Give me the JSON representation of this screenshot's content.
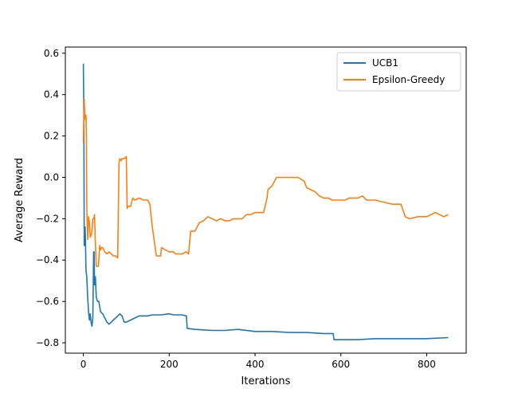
{
  "chart_data": {
    "type": "line",
    "xlabel": "Iterations",
    "ylabel": "Average Reward",
    "xlim": [
      -42,
      892
    ],
    "ylim": [
      -0.85,
      0.63
    ],
    "xticks": [
      0,
      200,
      400,
      600,
      800
    ],
    "xtick_labels": [
      "0",
      "200",
      "400",
      "600",
      "800"
    ],
    "yticks": [
      -0.8,
      -0.6,
      -0.4,
      -0.2,
      0.0,
      0.2,
      0.4,
      0.6
    ],
    "ytick_labels": [
      "−0.8",
      "−0.6",
      "−0.4",
      "−0.2",
      "0.0",
      "0.2",
      "0.4",
      "0.6"
    ],
    "grid": false,
    "legend_position": "top-right",
    "series": [
      {
        "name": "UCB1",
        "color": "#1f77b4",
        "x": [
          0,
          1,
          2,
          3,
          4,
          5,
          6,
          8,
          10,
          12,
          14,
          16,
          18,
          20,
          22,
          24,
          25,
          26,
          28,
          30,
          33,
          36,
          40,
          45,
          50,
          55,
          60,
          65,
          70,
          75,
          80,
          85,
          90,
          95,
          100,
          110,
          120,
          130,
          140,
          150,
          160,
          180,
          200,
          210,
          220,
          230,
          240,
          242,
          260,
          300,
          330,
          360,
          400,
          440,
          480,
          520,
          560,
          582,
          584,
          600,
          640,
          680,
          720,
          760,
          800,
          850
        ],
        "y": [
          0.55,
          0.3,
          -0.33,
          -0.25,
          -0.24,
          -0.32,
          -0.45,
          -0.48,
          -0.58,
          -0.65,
          -0.69,
          -0.66,
          -0.7,
          -0.72,
          -0.68,
          -0.36,
          -0.36,
          -0.52,
          -0.48,
          -0.58,
          -0.6,
          -0.6,
          -0.65,
          -0.66,
          -0.68,
          -0.7,
          -0.71,
          -0.7,
          -0.69,
          -0.68,
          -0.67,
          -0.66,
          -0.67,
          -0.7,
          -0.7,
          -0.69,
          -0.68,
          -0.67,
          -0.67,
          -0.67,
          -0.665,
          -0.665,
          -0.66,
          -0.665,
          -0.665,
          -0.665,
          -0.67,
          -0.73,
          -0.735,
          -0.74,
          -0.74,
          -0.735,
          -0.745,
          -0.745,
          -0.75,
          -0.75,
          -0.755,
          -0.755,
          -0.785,
          -0.785,
          -0.785,
          -0.78,
          -0.78,
          -0.78,
          -0.78,
          -0.775
        ]
      },
      {
        "name": "Epsilon-Greedy",
        "color": "#ff7f0e",
        "x": [
          0,
          2,
          3,
          4,
          6,
          7,
          8,
          10,
          12,
          14,
          16,
          18,
          20,
          22,
          24,
          26,
          28,
          30,
          35,
          38,
          40,
          42,
          45,
          50,
          55,
          60,
          65,
          70,
          75,
          80,
          83,
          85,
          88,
          90,
          95,
          100,
          102,
          104,
          110,
          115,
          120,
          130,
          140,
          150,
          155,
          160,
          170,
          180,
          182,
          200,
          210,
          215,
          230,
          240,
          245,
          250,
          260,
          270,
          280,
          290,
          300,
          310,
          320,
          330,
          340,
          350,
          360,
          370,
          380,
          390,
          400,
          410,
          420,
          428,
          430,
          440,
          445,
          450,
          460,
          480,
          500,
          515,
          520,
          530,
          540,
          550,
          560,
          570,
          580,
          590,
          600,
          610,
          620,
          640,
          650,
          660,
          680,
          700,
          720,
          730,
          740,
          750,
          760,
          780,
          800,
          820,
          840,
          850
        ],
        "y": [
          0.17,
          0.38,
          0.32,
          0.28,
          0.3,
          0.2,
          -0.14,
          -0.3,
          -0.19,
          -0.22,
          -0.29,
          -0.28,
          -0.26,
          -0.2,
          -0.2,
          -0.18,
          -0.32,
          -0.43,
          -0.43,
          -0.33,
          -0.35,
          -0.34,
          -0.34,
          -0.36,
          -0.37,
          -0.36,
          -0.37,
          -0.38,
          -0.38,
          -0.39,
          0.07,
          0.09,
          0.08,
          0.09,
          0.09,
          0.1,
          -0.15,
          -0.14,
          -0.14,
          -0.1,
          -0.11,
          -0.1,
          -0.11,
          -0.11,
          -0.13,
          -0.23,
          -0.38,
          -0.38,
          -0.34,
          -0.36,
          -0.36,
          -0.37,
          -0.37,
          -0.36,
          -0.37,
          -0.26,
          -0.26,
          -0.22,
          -0.21,
          -0.19,
          -0.2,
          -0.21,
          -0.2,
          -0.21,
          -0.21,
          -0.2,
          -0.2,
          -0.2,
          -0.18,
          -0.18,
          -0.17,
          -0.17,
          -0.17,
          -0.1,
          -0.06,
          -0.04,
          -0.02,
          0.0,
          0.0,
          0.0,
          0.0,
          -0.02,
          -0.05,
          -0.06,
          -0.07,
          -0.09,
          -0.1,
          -0.1,
          -0.11,
          -0.11,
          -0.11,
          -0.11,
          -0.1,
          -0.1,
          -0.09,
          -0.11,
          -0.11,
          -0.12,
          -0.13,
          -0.13,
          -0.13,
          -0.19,
          -0.2,
          -0.19,
          -0.19,
          -0.17,
          -0.19,
          -0.18
        ]
      }
    ]
  }
}
